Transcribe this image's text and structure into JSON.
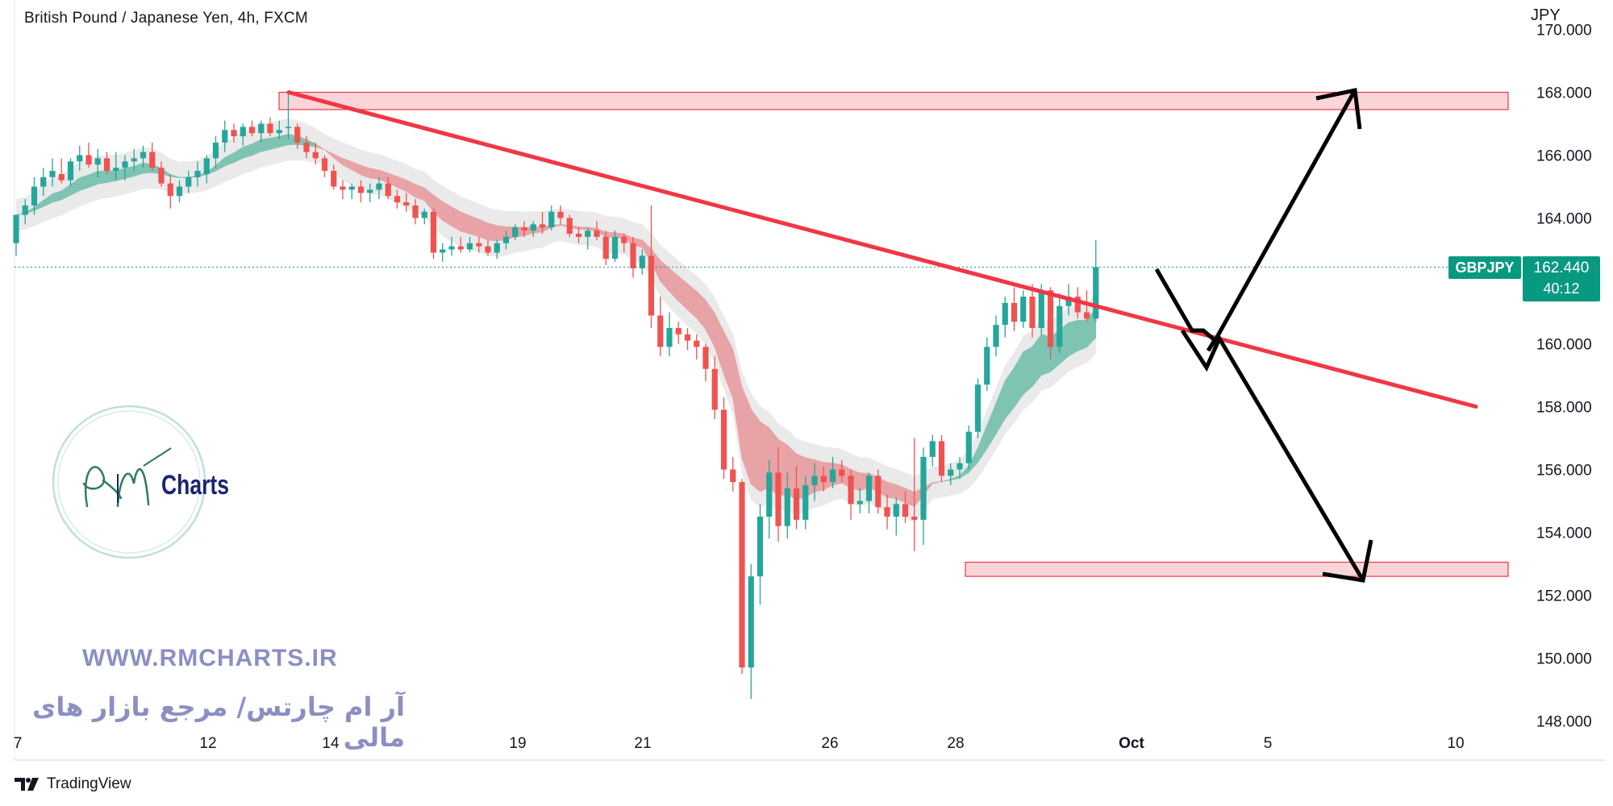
{
  "header": {
    "title": "British Pound / Japanese Yen, 4h, FXCM",
    "currency": "JPY"
  },
  "price_axis": {
    "ticks": [
      "170.000",
      "168.000",
      "166.000",
      "164.000",
      "162.000",
      "160.000",
      "158.000",
      "156.000",
      "154.000",
      "152.000",
      "150.000",
      "148.000"
    ]
  },
  "time_axis": {
    "ticks": [
      "7",
      "12",
      "14",
      "19",
      "21",
      "26",
      "28",
      "Oct",
      "5",
      "10"
    ]
  },
  "last_price": {
    "symbol": "GBPJPY",
    "value": "162.440",
    "countdown": "40:12"
  },
  "watermark": {
    "logo_text": "Charts",
    "url": "WWW.RMCHARTS.IR",
    "tagline": "آر ام چارتس/ مرجع بازار های مالی"
  },
  "footer": {
    "brand": "TradingView"
  },
  "colors": {
    "up": "#26a69a",
    "down": "#ef5350",
    "trendline": "#f23645",
    "zone_fill": "#f9d5d8",
    "zone_border": "#f23645",
    "label_bg": "#089981",
    "arrow": "#000000",
    "watermark": "#8b8fc2"
  },
  "chart_data": {
    "type": "candlestick",
    "symbol": "GBPJPY",
    "timeframe": "4h",
    "y_range": [
      147.8,
      170.2
    ],
    "last_price": 162.44,
    "resistance_zone": [
      167.5,
      168.0
    ],
    "support_zone": [
      152.6,
      153.0
    ],
    "trendline": {
      "from": {
        "x": "13",
        "y": 168.0
      },
      "to": {
        "x": "Oct 8",
        "y": 158.0
      }
    },
    "scenarios": [
      "up to 168.000",
      "down to 152.600"
    ],
    "ohlc_approx": [
      [
        0,
        163.2,
        164.1,
        162.8,
        164.1
      ],
      [
        1,
        164.1,
        164.6,
        163.8,
        164.4
      ],
      [
        2,
        164.4,
        165.3,
        164.1,
        165.0
      ],
      [
        3,
        165.0,
        165.6,
        164.7,
        165.3
      ],
      [
        4,
        165.3,
        165.9,
        165.0,
        165.5
      ],
      [
        5,
        165.4,
        165.9,
        165.1,
        165.2
      ],
      [
        6,
        165.2,
        165.9,
        165.0,
        165.8
      ],
      [
        7,
        165.8,
        166.3,
        165.5,
        166.0
      ],
      [
        8,
        166.0,
        166.4,
        165.6,
        165.7
      ],
      [
        9,
        165.7,
        166.2,
        165.3,
        165.9
      ],
      [
        10,
        165.9,
        166.1,
        165.4,
        165.5
      ],
      [
        11,
        165.5,
        166.1,
        165.2,
        165.6
      ],
      [
        12,
        165.6,
        166.0,
        165.2,
        165.8
      ],
      [
        13,
        165.8,
        166.2,
        165.5,
        165.9
      ],
      [
        14,
        165.9,
        166.3,
        165.6,
        166.1
      ],
      [
        15,
        166.1,
        166.4,
        165.5,
        165.6
      ],
      [
        16,
        165.6,
        165.8,
        165.0,
        165.1
      ],
      [
        17,
        165.1,
        165.4,
        164.3,
        164.7
      ],
      [
        18,
        164.7,
        165.2,
        164.5,
        165.0
      ],
      [
        19,
        165.0,
        165.5,
        164.8,
        165.3
      ],
      [
        20,
        165.3,
        165.8,
        165.0,
        165.5
      ],
      [
        21,
        165.4,
        166.0,
        165.1,
        165.9
      ],
      [
        22,
        165.9,
        166.6,
        165.6,
        166.4
      ],
      [
        23,
        166.4,
        167.1,
        166.1,
        166.8
      ],
      [
        24,
        166.8,
        167.0,
        166.4,
        166.6
      ],
      [
        25,
        166.6,
        167.0,
        166.3,
        166.9
      ],
      [
        26,
        166.9,
        167.1,
        166.6,
        166.7
      ],
      [
        27,
        166.7,
        167.1,
        166.4,
        167.0
      ],
      [
        28,
        167.0,
        167.2,
        166.6,
        166.7
      ],
      [
        29,
        166.7,
        167.1,
        166.5,
        166.8
      ],
      [
        30,
        166.9,
        168.0,
        166.5,
        166.9
      ],
      [
        31,
        166.9,
        167.0,
        166.2,
        166.4
      ],
      [
        32,
        166.4,
        166.6,
        165.9,
        166.1
      ],
      [
        33,
        166.1,
        166.4,
        165.7,
        165.9
      ],
      [
        34,
        165.9,
        166.0,
        165.3,
        165.5
      ],
      [
        35,
        165.5,
        165.7,
        164.9,
        165.0
      ],
      [
        36,
        165.0,
        165.2,
        164.6,
        164.9
      ],
      [
        37,
        164.9,
        165.1,
        164.6,
        165.0
      ],
      [
        38,
        165.0,
        165.2,
        164.5,
        164.8
      ],
      [
        39,
        164.8,
        165.1,
        164.5,
        164.9
      ],
      [
        40,
        164.9,
        165.3,
        164.6,
        165.1
      ],
      [
        41,
        165.1,
        165.3,
        164.6,
        164.7
      ],
      [
        42,
        164.7,
        164.9,
        164.3,
        164.5
      ],
      [
        43,
        164.5,
        164.8,
        164.2,
        164.4
      ],
      [
        44,
        164.4,
        164.6,
        163.8,
        164.0
      ],
      [
        45,
        164.0,
        164.3,
        163.8,
        164.2
      ],
      [
        46,
        164.2,
        164.3,
        162.7,
        162.9
      ],
      [
        47,
        162.9,
        163.2,
        162.6,
        163.0
      ],
      [
        48,
        163.0,
        163.4,
        162.8,
        163.1
      ],
      [
        49,
        163.1,
        163.4,
        162.9,
        163.0
      ],
      [
        50,
        163.0,
        163.4,
        162.9,
        163.2
      ],
      [
        51,
        163.2,
        163.4,
        162.9,
        163.1
      ],
      [
        52,
        163.1,
        163.3,
        162.8,
        162.9
      ],
      [
        53,
        162.9,
        163.3,
        162.7,
        163.2
      ],
      [
        54,
        163.2,
        163.6,
        163.0,
        163.4
      ],
      [
        55,
        163.4,
        163.8,
        163.3,
        163.7
      ],
      [
        56,
        163.7,
        163.9,
        163.4,
        163.6
      ],
      [
        57,
        163.6,
        163.9,
        163.4,
        163.8
      ],
      [
        58,
        163.8,
        164.2,
        163.5,
        163.7
      ],
      [
        59,
        163.7,
        164.4,
        163.6,
        164.2
      ],
      [
        60,
        164.2,
        164.4,
        163.8,
        164.0
      ],
      [
        61,
        164.0,
        164.1,
        163.4,
        163.5
      ],
      [
        62,
        163.5,
        163.7,
        163.2,
        163.4
      ],
      [
        63,
        163.4,
        163.7,
        163.0,
        163.6
      ],
      [
        64,
        163.6,
        163.9,
        163.3,
        163.4
      ],
      [
        65,
        163.4,
        163.6,
        162.5,
        162.7
      ],
      [
        66,
        162.7,
        163.6,
        162.6,
        163.4
      ],
      [
        67,
        163.4,
        163.5,
        162.9,
        163.2
      ],
      [
        68,
        163.2,
        163.4,
        162.1,
        162.4
      ],
      [
        69,
        162.4,
        163.0,
        162.2,
        162.8
      ],
      [
        70,
        162.8,
        164.4,
        160.5,
        160.9
      ],
      [
        71,
        160.9,
        161.5,
        159.6,
        159.9
      ],
      [
        72,
        159.9,
        161.0,
        159.6,
        160.5
      ],
      [
        73,
        160.5,
        160.7,
        160.0,
        160.3
      ],
      [
        74,
        160.3,
        160.5,
        159.8,
        160.1
      ],
      [
        75,
        160.1,
        160.3,
        159.5,
        159.9
      ],
      [
        76,
        159.9,
        160.0,
        158.8,
        159.2
      ],
      [
        77,
        159.2,
        159.6,
        157.6,
        157.9
      ],
      [
        78,
        157.9,
        158.3,
        155.7,
        156.0
      ],
      [
        79,
        156.0,
        156.4,
        155.3,
        155.6
      ],
      [
        80,
        155.6,
        155.7,
        149.5,
        149.7
      ],
      [
        81,
        149.7,
        153.0,
        148.7,
        152.6
      ],
      [
        82,
        152.6,
        154.9,
        151.7,
        154.5
      ],
      [
        83,
        154.5,
        156.3,
        153.8,
        155.9
      ],
      [
        84,
        155.9,
        156.7,
        153.7,
        154.2
      ],
      [
        85,
        154.2,
        155.9,
        153.8,
        155.4
      ],
      [
        86,
        155.4,
        156.1,
        154.1,
        154.4
      ],
      [
        87,
        154.4,
        155.8,
        154.1,
        155.5
      ],
      [
        88,
        155.5,
        156.2,
        155.0,
        155.8
      ],
      [
        89,
        155.8,
        156.1,
        155.3,
        155.6
      ],
      [
        90,
        155.6,
        156.4,
        155.4,
        156.0
      ],
      [
        91,
        156.0,
        156.3,
        155.6,
        155.8
      ],
      [
        92,
        155.8,
        156.0,
        154.4,
        154.9
      ],
      [
        93,
        154.9,
        155.4,
        154.6,
        155.0
      ],
      [
        94,
        155.0,
        155.9,
        154.6,
        155.8
      ],
      [
        95,
        155.8,
        156.0,
        154.6,
        154.8
      ],
      [
        96,
        154.8,
        155.2,
        154.1,
        154.5
      ],
      [
        97,
        154.5,
        155.1,
        153.9,
        154.9
      ],
      [
        98,
        154.9,
        155.3,
        154.3,
        154.5
      ],
      [
        99,
        154.5,
        157.0,
        153.4,
        154.4
      ],
      [
        100,
        154.4,
        156.7,
        153.6,
        156.4
      ],
      [
        101,
        156.4,
        157.1,
        156.1,
        156.9
      ],
      [
        102,
        156.9,
        157.1,
        155.6,
        155.8
      ],
      [
        103,
        155.8,
        156.2,
        155.5,
        156.0
      ],
      [
        104,
        156.0,
        156.4,
        155.7,
        156.2
      ],
      [
        105,
        156.2,
        157.4,
        156.0,
        157.2
      ],
      [
        106,
        157.2,
        158.9,
        157.0,
        158.7
      ],
      [
        107,
        158.7,
        160.2,
        158.5,
        159.9
      ],
      [
        108,
        159.9,
        160.9,
        159.6,
        160.6
      ],
      [
        109,
        160.6,
        161.5,
        160.2,
        161.3
      ],
      [
        110,
        161.3,
        161.8,
        160.4,
        160.7
      ],
      [
        111,
        160.7,
        161.7,
        160.5,
        161.5
      ],
      [
        112,
        161.5,
        161.9,
        160.2,
        160.5
      ],
      [
        113,
        160.5,
        161.9,
        160.3,
        161.7
      ],
      [
        114,
        161.7,
        161.8,
        159.5,
        159.9
      ],
      [
        115,
        159.9,
        161.6,
        159.7,
        161.2
      ],
      [
        116,
        161.2,
        161.9,
        160.9,
        161.5
      ],
      [
        117,
        161.5,
        161.8,
        160.8,
        161.0
      ],
      [
        118,
        161.0,
        161.7,
        160.7,
        160.8
      ],
      [
        119,
        160.8,
        163.3,
        160.7,
        162.44
      ]
    ]
  }
}
